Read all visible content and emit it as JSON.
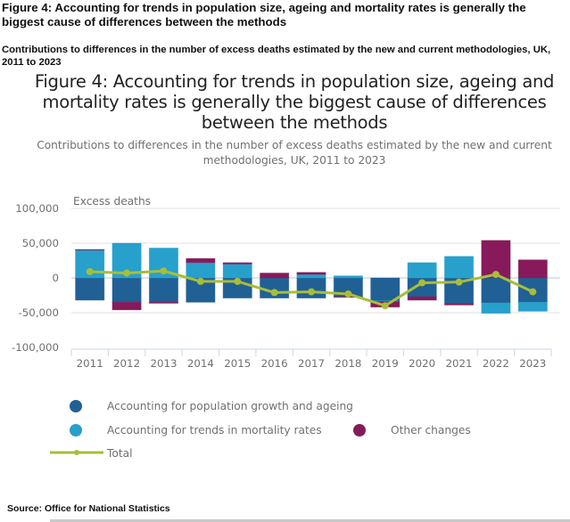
{
  "page": {
    "header_title": "Figure 4: Accounting for trends in population size, ageing and mortality rates is generally the biggest cause of differences between the methods",
    "header_subtitle": "Contributions to differences in the number of excess deaths estimated by the new and current methodologies, UK, 2011 to 2023",
    "source": "Source: Office for National Statistics"
  },
  "chart_data": {
    "type": "bar",
    "stacked": true,
    "title": "Figure 4: Accounting for trends in population size, ageing and mortality rates is generally the biggest cause of differences between the methods",
    "subtitle": "Contributions to differences in the number of excess deaths estimated by the new and current methodologies, UK, 2011 to 2023",
    "xlabel": "",
    "ylabel": "Excess deaths",
    "ylim": [
      -100000,
      100000
    ],
    "yticks": [
      100000,
      50000,
      0,
      -50000,
      -100000
    ],
    "ytick_labels": [
      "100,000",
      "50,000",
      "0",
      "-50,000",
      "-100,000"
    ],
    "grid": true,
    "legend_position": "bottom",
    "categories": [
      "2011",
      "2012",
      "2013",
      "2014",
      "2015",
      "2016",
      "2017",
      "2018",
      "2019",
      "2020",
      "2021",
      "2022",
      "2023"
    ],
    "series": [
      {
        "name": "Accounting for population growth and ageing",
        "kind": "bar",
        "color": "#206095",
        "values": [
          -32000,
          -35000,
          -35000,
          -35000,
          -29000,
          -29000,
          -29000,
          -27000,
          -33000,
          -27000,
          -37000,
          -36000,
          -35000
        ]
      },
      {
        "name": "Accounting for trends in mortality rates",
        "kind": "bar",
        "color": "#27a0cc",
        "values": [
          40000,
          50000,
          43000,
          22000,
          20000,
          0,
          5000,
          3000,
          -1000,
          22000,
          31000,
          -15000,
          -13000
        ]
      },
      {
        "name": "Other changes",
        "kind": "bar",
        "color": "#871a5b",
        "values": [
          1000,
          -11000,
          -1500,
          6000,
          2000,
          7000,
          3000,
          -1000,
          -8000,
          -5000,
          -2000,
          54000,
          26000
        ]
      },
      {
        "name": "Total",
        "kind": "line",
        "color": "#a8bd3a",
        "values": [
          9000,
          7000,
          10000,
          -5000,
          -5000,
          -21000,
          -20000,
          -23000,
          -40000,
          -7000,
          -6000,
          5000,
          -20000
        ]
      }
    ]
  },
  "legend": {
    "items": [
      {
        "label": "Accounting for population growth and ageing",
        "color": "#206095",
        "icon": "circle"
      },
      {
        "label": "Accounting for trends in mortality rates",
        "color": "#27a0cc",
        "icon": "circle"
      },
      {
        "label": "Other changes",
        "color": "#871a5b",
        "icon": "circle"
      },
      {
        "label": "Total",
        "color": "#a8bd3a",
        "icon": "line-with-dot"
      }
    ]
  }
}
